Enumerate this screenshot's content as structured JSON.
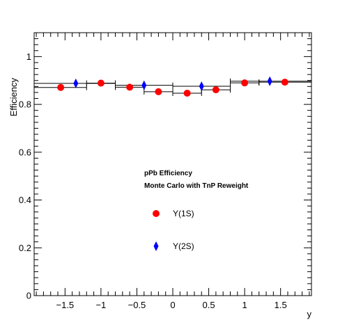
{
  "chart_data": {
    "type": "scatter",
    "xlabel": "y",
    "ylabel": "Efficiency",
    "xlim": [
      -1.93,
      1.93
    ],
    "ylim": [
      0,
      1.1
    ],
    "x_ticks": [
      -1.5,
      -1,
      -0.5,
      0,
      0.5,
      1,
      1.5
    ],
    "x_tick_labels": [
      "−1.5",
      "−1",
      "−0.5",
      "0",
      "0.5",
      "1",
      "1.5"
    ],
    "y_ticks": [
      0,
      0.2,
      0.4,
      0.6,
      0.8,
      1
    ],
    "y_tick_labels": [
      "0",
      "0.2",
      "0.4",
      "0.6",
      "0.8",
      "1"
    ],
    "grid": false,
    "legend_position": "center",
    "legend_title_lines": [
      "pPb Efficiency",
      "Monte Carlo with TnP Reweight"
    ],
    "series": [
      {
        "name": "Υ(1S)",
        "marker": "circle",
        "color": "#ff0000",
        "points": [
          {
            "x": -1.56,
            "y": 0.871,
            "xerr_low": 0.37,
            "xerr_high": 0.36
          },
          {
            "x": -1.0,
            "y": 0.889,
            "xerr_low": 0.2,
            "xerr_high": 0.2
          },
          {
            "x": -0.6,
            "y": 0.872,
            "xerr_low": 0.2,
            "xerr_high": 0.2
          },
          {
            "x": -0.2,
            "y": 0.853,
            "xerr_low": 0.2,
            "xerr_high": 0.2
          },
          {
            "x": 0.2,
            "y": 0.847,
            "xerr_low": 0.2,
            "xerr_high": 0.2
          },
          {
            "x": 0.6,
            "y": 0.861,
            "xerr_low": 0.2,
            "xerr_high": 0.2
          },
          {
            "x": 1.0,
            "y": 0.89,
            "xerr_low": 0.2,
            "xerr_high": 0.2
          },
          {
            "x": 1.56,
            "y": 0.893,
            "xerr_low": 0.36,
            "xerr_high": 0.37
          }
        ]
      },
      {
        "name": "Υ(2S)",
        "marker": "diamond",
        "color": "#0000ff",
        "points": [
          {
            "x": -1.35,
            "y": 0.888,
            "xerr_low": 0.58,
            "xerr_high": 0.55
          },
          {
            "x": -0.4,
            "y": 0.88,
            "xerr_low": 0.4,
            "xerr_high": 0.4
          },
          {
            "x": 0.4,
            "y": 0.876,
            "xerr_low": 0.4,
            "xerr_high": 0.4
          },
          {
            "x": 1.35,
            "y": 0.897,
            "xerr_low": 0.55,
            "xerr_high": 0.58
          }
        ]
      }
    ]
  }
}
